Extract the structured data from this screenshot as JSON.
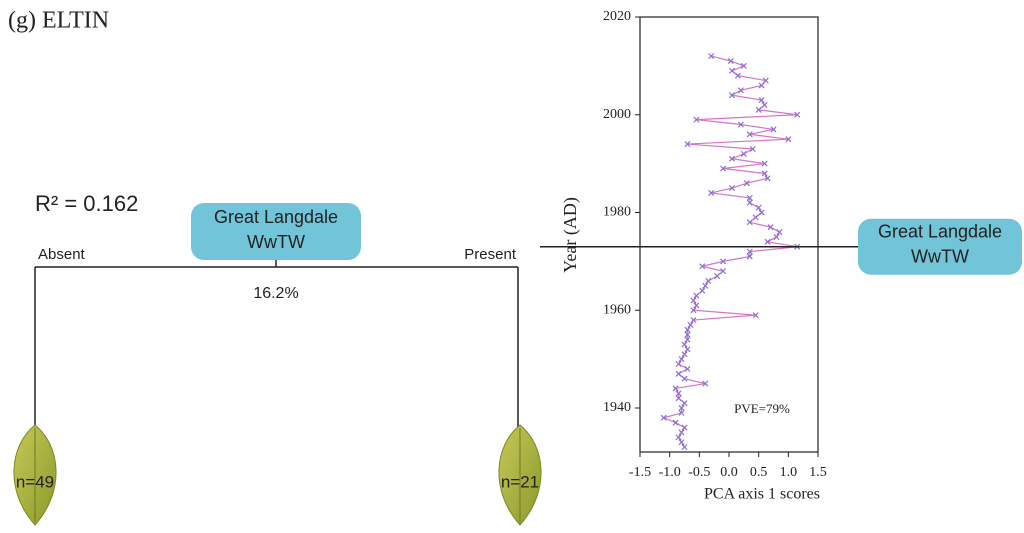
{
  "panel_label": "(g) ELTIN",
  "tree": {
    "r_squared": "R² = 0.162",
    "root": {
      "label_lines": [
        "Great Langdale",
        "WwTW"
      ],
      "explained": "16.2%"
    },
    "branches": [
      {
        "label": "Absent",
        "leaf": "n=49"
      },
      {
        "label": "Present",
        "leaf": "n=21"
      }
    ]
  },
  "chart_data": {
    "type": "line",
    "orientation": "vertical",
    "xlabel": "PCA axis 1 scores",
    "ylabel": "Year (AD)",
    "annotation": "PVE=79%",
    "x": [
      2012,
      2011,
      2010,
      2009,
      2008,
      2007,
      2006,
      2005,
      2004,
      2003,
      2002,
      2001,
      2000,
      1999,
      1998,
      1997,
      1996,
      1995,
      1994,
      1993,
      1992,
      1991,
      1990,
      1989,
      1988,
      1987,
      1986,
      1985,
      1984,
      1983,
      1982,
      1981,
      1980,
      1979,
      1978,
      1977,
      1976,
      1975,
      1974,
      1973,
      1972,
      1971,
      1970,
      1969,
      1968,
      1967,
      1966,
      1965,
      1964,
      1963,
      1962,
      1961,
      1960,
      1959,
      1958,
      1957,
      1956,
      1955,
      1954,
      1953,
      1952,
      1951,
      1950,
      1949,
      1948,
      1947,
      1946,
      1945,
      1944,
      1943,
      1942,
      1941,
      1940,
      1939,
      1938,
      1937,
      1936,
      1935,
      1934,
      1933,
      1932
    ],
    "series": [
      {
        "line_color": "#d674c8",
        "color": "#8a6fd6",
        "values": [
          -0.3,
          0.03,
          0.25,
          0.05,
          0.15,
          0.62,
          0.55,
          0.2,
          0.05,
          0.55,
          0.6,
          0.5,
          1.15,
          -0.55,
          0.2,
          0.75,
          0.35,
          1.0,
          -0.7,
          0.4,
          0.25,
          0.05,
          0.6,
          -0.1,
          0.6,
          0.65,
          0.3,
          0.05,
          -0.3,
          0.35,
          0.35,
          0.5,
          0.55,
          0.45,
          0.35,
          0.7,
          0.85,
          0.8,
          0.65,
          1.15,
          0.35,
          0.35,
          -0.1,
          -0.45,
          -0.1,
          -0.2,
          -0.35,
          -0.4,
          -0.45,
          -0.55,
          -0.6,
          -0.55,
          -0.6,
          0.45,
          -0.6,
          -0.65,
          -0.7,
          -0.7,
          -0.7,
          -0.75,
          -0.7,
          -0.75,
          -0.8,
          -0.85,
          -0.7,
          -0.85,
          -0.75,
          -0.4,
          -0.9,
          -0.85,
          -0.85,
          -0.75,
          -0.8,
          -0.8,
          -1.1,
          -0.9,
          -0.75,
          -0.8,
          -0.85,
          -0.8,
          -0.75
        ]
      }
    ],
    "xlim": [
      -1.5,
      1.5
    ],
    "xticks": [
      -1.5,
      {
        "value": -1,
        "label": "-1.0"
      },
      -0.5,
      {
        "value": 0,
        "label": "0.0"
      },
      0.5,
      {
        "value": 1,
        "label": "1.0"
      },
      1.5
    ],
    "ylim": [
      1931,
      2020
    ],
    "yticks": [
      1940,
      1960,
      1980,
      2000,
      2020
    ],
    "event": {
      "value": 1973,
      "label_lines": [
        "Great Langdale",
        "WwTW"
      ]
    }
  }
}
